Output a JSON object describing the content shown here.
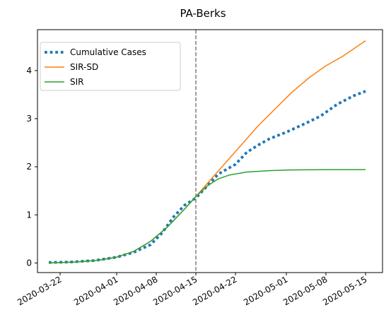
{
  "chart_data": {
    "type": "line",
    "title": "PA-Berks",
    "xlabel": "",
    "ylabel": "",
    "x_ticks": [
      "2020-03-22",
      "2020-04-01",
      "2020-04-08",
      "2020-04-15",
      "2020-04-22",
      "2020-05-01",
      "2020-05-08",
      "2020-05-15"
    ],
    "y_ticks": [
      0,
      1,
      2,
      3,
      4
    ],
    "xlim": [
      "2020-03-18",
      "2020-05-18"
    ],
    "ylim": [
      -0.2,
      4.85
    ],
    "vline": {
      "date": "2020-04-15",
      "style": "dashed",
      "color": "#7f7f7f"
    },
    "grid": false,
    "legend": "top-left",
    "series": [
      {
        "name": "Cumulative Cases",
        "style": "dotted",
        "color": "#1f77b4",
        "x": [
          "2020-03-20",
          "2020-03-24",
          "2020-03-28",
          "2020-04-01",
          "2020-04-04",
          "2020-04-07",
          "2020-04-09",
          "2020-04-11",
          "2020-04-13",
          "2020-04-15",
          "2020-04-17",
          "2020-04-19",
          "2020-04-22",
          "2020-04-24",
          "2020-04-26",
          "2020-04-28",
          "2020-05-01",
          "2020-05-04",
          "2020-05-07",
          "2020-05-10",
          "2020-05-13",
          "2020-05-15"
        ],
        "values": [
          0.01,
          0.02,
          0.05,
          0.12,
          0.22,
          0.38,
          0.62,
          0.95,
          1.2,
          1.35,
          1.6,
          1.85,
          2.05,
          2.3,
          2.45,
          2.58,
          2.72,
          2.88,
          3.05,
          3.3,
          3.48,
          3.57
        ]
      },
      {
        "name": "SIR-SD",
        "style": "solid",
        "color": "#ff7f0e",
        "x": [
          "2020-03-20",
          "2020-03-25",
          "2020-03-29",
          "2020-04-01",
          "2020-04-04",
          "2020-04-07",
          "2020-04-10",
          "2020-04-13",
          "2020-04-15",
          "2020-04-17",
          "2020-04-20",
          "2020-04-23",
          "2020-04-26",
          "2020-04-29",
          "2020-05-02",
          "2020-05-05",
          "2020-05-08",
          "2020-05-11",
          "2020-05-15"
        ],
        "values": [
          0.0,
          0.02,
          0.06,
          0.12,
          0.24,
          0.45,
          0.75,
          1.12,
          1.38,
          1.65,
          2.05,
          2.45,
          2.85,
          3.2,
          3.55,
          3.85,
          4.1,
          4.3,
          4.62
        ]
      },
      {
        "name": "SIR",
        "style": "solid",
        "color": "#2ca02c",
        "x": [
          "2020-03-20",
          "2020-03-25",
          "2020-03-29",
          "2020-04-01",
          "2020-04-04",
          "2020-04-07",
          "2020-04-10",
          "2020-04-13",
          "2020-04-15",
          "2020-04-17",
          "2020-04-19",
          "2020-04-21",
          "2020-04-24",
          "2020-04-28",
          "2020-05-02",
          "2020-05-08",
          "2020-05-15"
        ],
        "values": [
          0.0,
          0.02,
          0.06,
          0.12,
          0.24,
          0.45,
          0.75,
          1.12,
          1.38,
          1.6,
          1.75,
          1.83,
          1.89,
          1.92,
          1.935,
          1.94,
          1.94
        ]
      }
    ]
  }
}
